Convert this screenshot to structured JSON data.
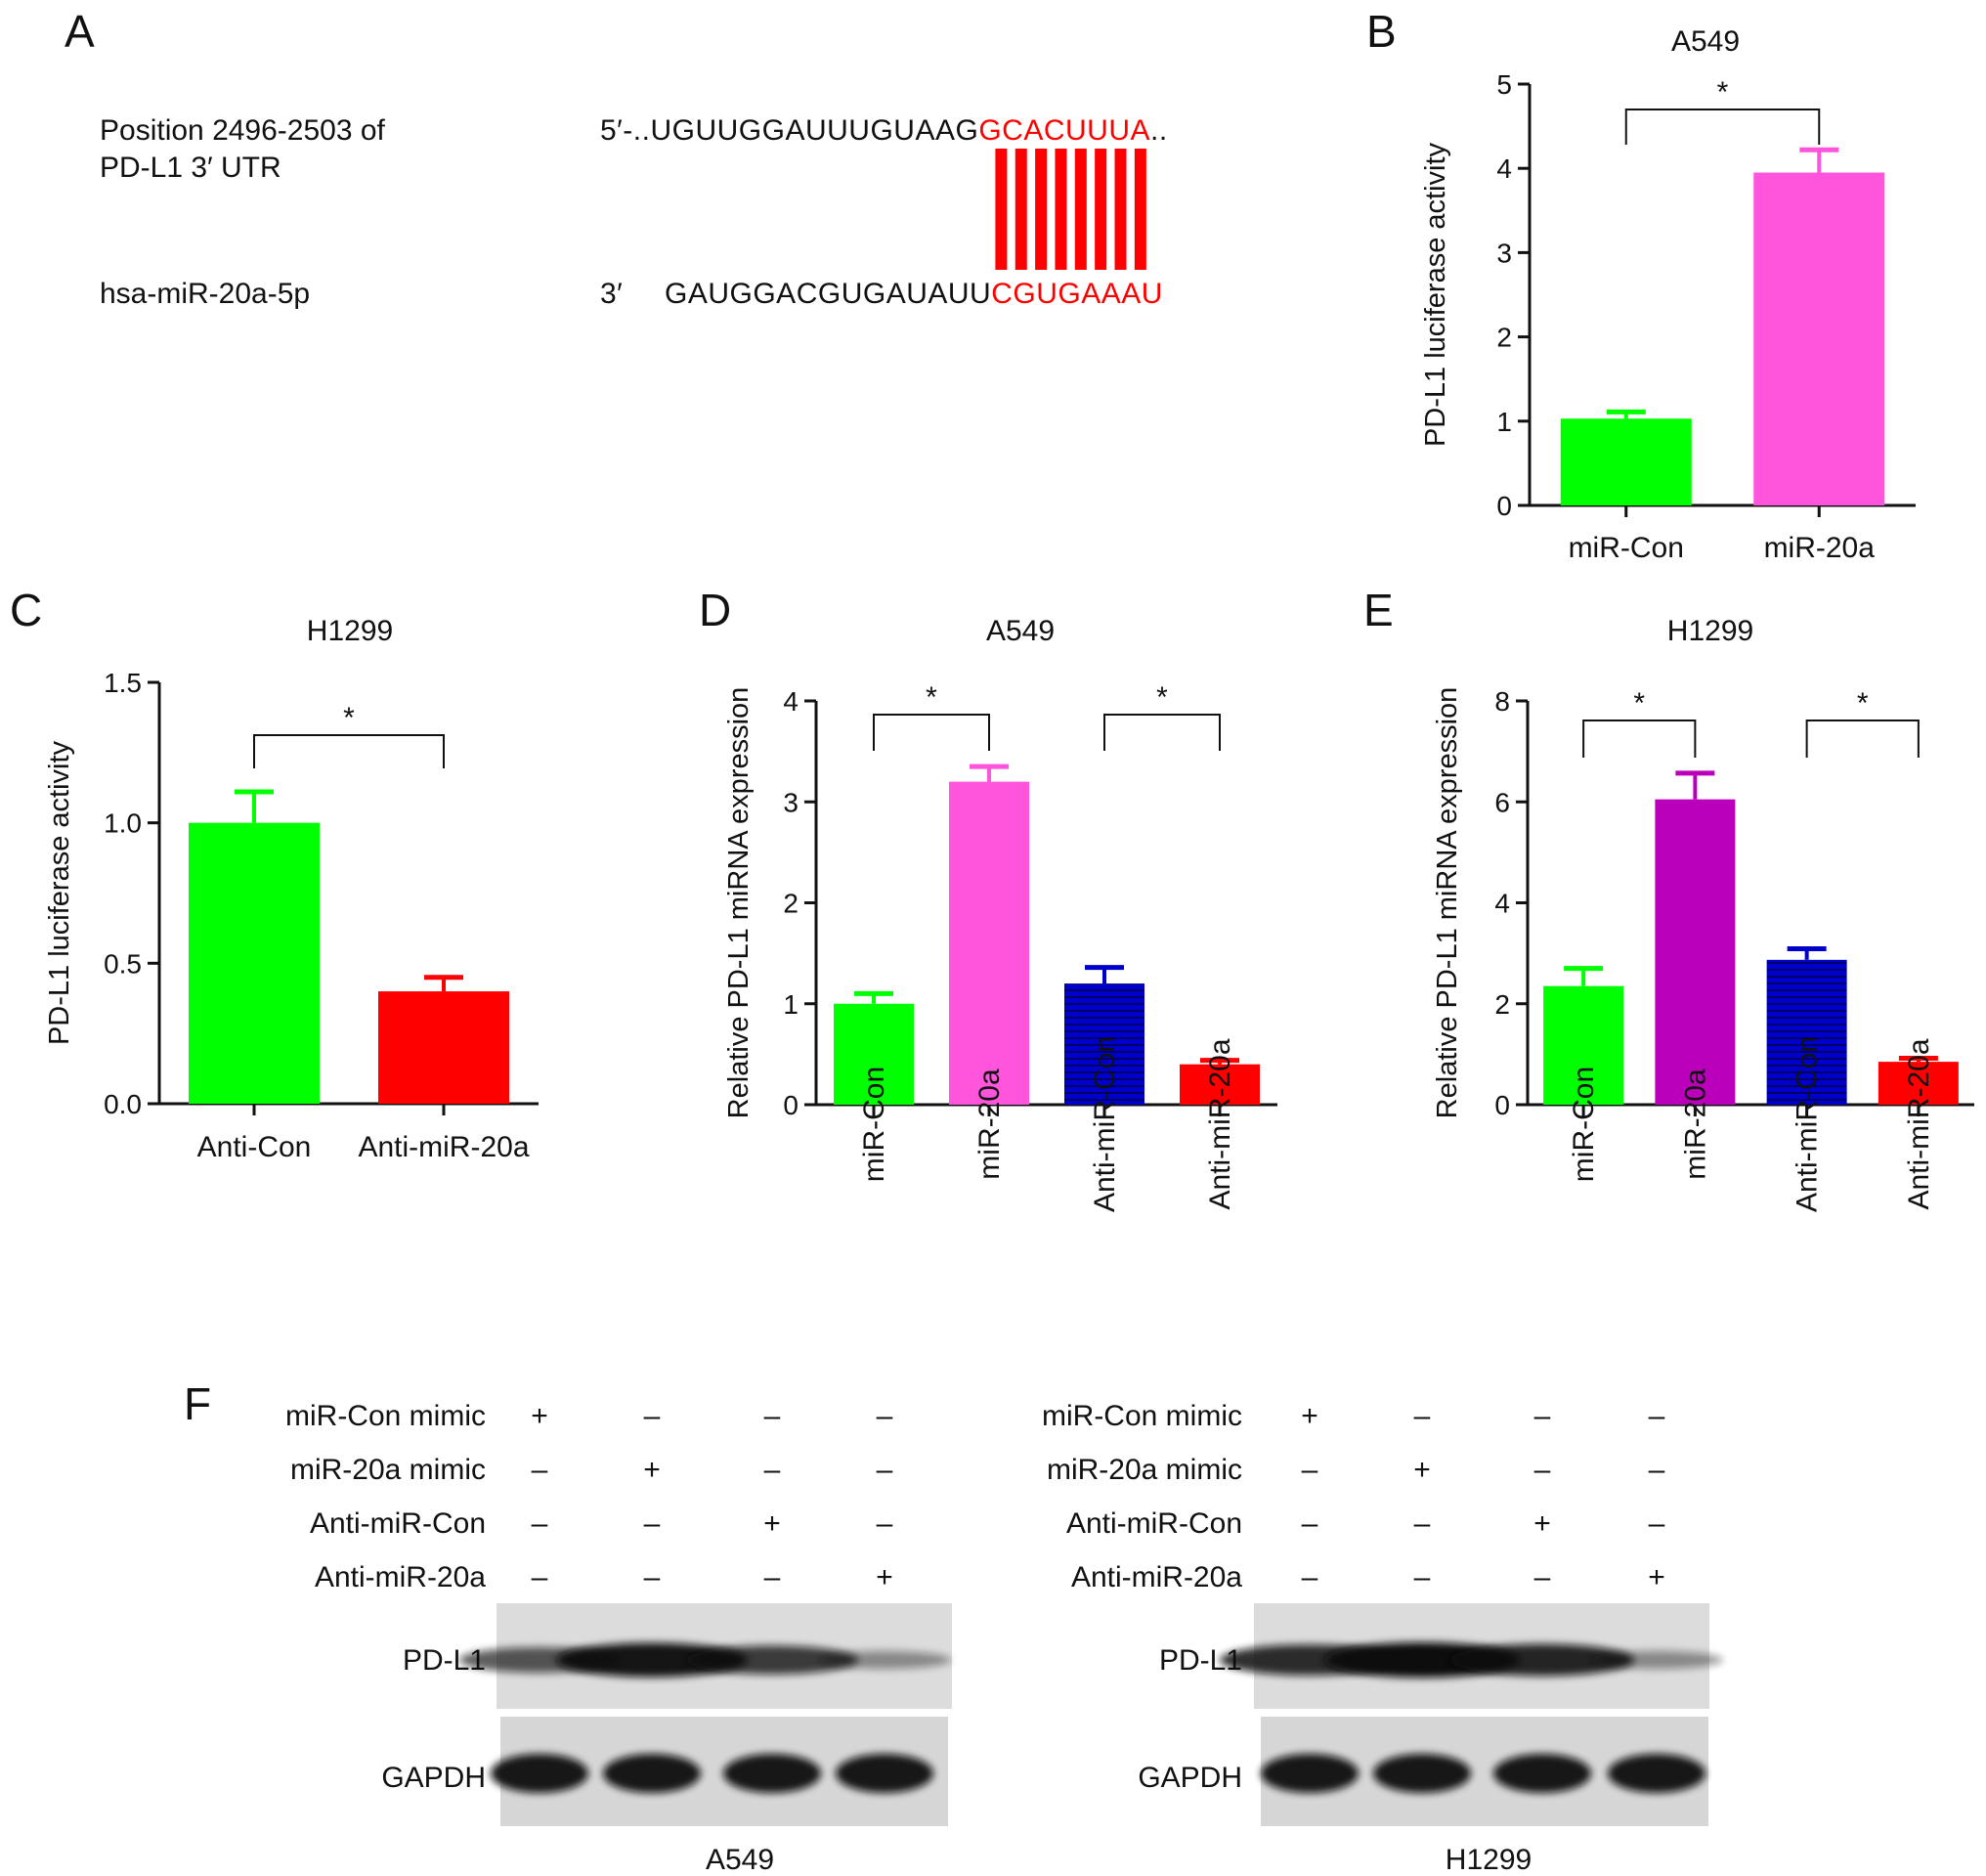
{
  "panels": {
    "A": "A",
    "B": "B",
    "C": "C",
    "D": "D",
    "E": "E",
    "F": "F"
  },
  "sequence": {
    "target_label_line1": "Position 2496-2503 of",
    "target_label_line2": "PD-L1 3′ UTR",
    "target_prefix": "5′-..UGUUGGAUUUGUAAG",
    "target_seed": "GCACUUUA",
    "target_suffix": "..",
    "mirna_label": "hsa-miR-20a-5p",
    "mirna_prefix": "3′",
    "mirna_body": "GAUGGACGUGAUAUU",
    "mirna_seed": "CGUGAAAU",
    "pair_count": 8,
    "pair_color": "#ff0000"
  },
  "chart_data": [
    {
      "id": "B",
      "type": "bar",
      "title": "A549",
      "ylabel": "PD-L1 luciferase activity",
      "ylim": [
        0,
        5
      ],
      "yticks": [
        "0",
        "1",
        "2",
        "3",
        "4",
        "5"
      ],
      "categories": [
        "miR-Con",
        "miR-20a"
      ],
      "values": [
        1.03,
        3.95
      ],
      "errors": [
        0.08,
        0.27
      ],
      "colors": [
        "#00ff00",
        "#ff55dd"
      ],
      "significance": [
        {
          "from": 0,
          "to": 1,
          "label": "*"
        }
      ]
    },
    {
      "id": "C",
      "type": "bar",
      "title": "H1299",
      "ylabel": "PD-L1 luciferase activity",
      "ylim": [
        0,
        1.5
      ],
      "yticks": [
        "0.0",
        "0.5",
        "1.0",
        "1.5"
      ],
      "categories": [
        "Anti-Con",
        "Anti-miR-20a"
      ],
      "values": [
        1.0,
        0.4
      ],
      "errors": [
        0.11,
        0.05
      ],
      "colors": [
        "#00ff00",
        "#ff0000"
      ],
      "significance": [
        {
          "from": 0,
          "to": 1,
          "label": "*"
        }
      ]
    },
    {
      "id": "D",
      "type": "bar",
      "title": "A549",
      "ylabel": "Relative PD-L1 miRNA expression",
      "ylim": [
        0,
        4
      ],
      "yticks": [
        "0",
        "1",
        "2",
        "3",
        "4"
      ],
      "categories": [
        "miR-Con",
        "miR-20a",
        "Anti-miR-Con",
        "Anti-miR-20a"
      ],
      "values": [
        1.0,
        3.2,
        1.2,
        0.4
      ],
      "errors": [
        0.1,
        0.15,
        0.16,
        0.04
      ],
      "colors": [
        "#00ff00",
        "#ff55dd",
        "#0000cc",
        "#ff0000"
      ],
      "significance": [
        {
          "from": 0,
          "to": 1,
          "label": "*"
        },
        {
          "from": 2,
          "to": 3,
          "label": "*"
        }
      ]
    },
    {
      "id": "E",
      "type": "bar",
      "title": "H1299",
      "ylabel": "Relative PD-L1 miRNA expression",
      "ylim": [
        0,
        8
      ],
      "yticks": [
        "0",
        "2",
        "4",
        "6",
        "8"
      ],
      "categories": [
        "miR-Con",
        "miR-20a",
        "Anti-miR-Con",
        "Anti-miR-20a"
      ],
      "values": [
        2.35,
        6.05,
        2.87,
        0.85
      ],
      "errors": [
        0.35,
        0.52,
        0.22,
        0.07
      ],
      "colors": [
        "#00ff00",
        "#bb00bb",
        "#0000cc",
        "#ff0000"
      ],
      "significance": [
        {
          "from": 0,
          "to": 1,
          "label": "*"
        },
        {
          "from": 2,
          "to": 3,
          "label": "*"
        }
      ]
    }
  ],
  "western": {
    "row_labels": [
      "miR-Con mimic",
      "miR-20a mimic",
      "Anti-miR-Con",
      "Anti-miR-20a"
    ],
    "signs": [
      [
        "+",
        "–",
        "–",
        "–"
      ],
      [
        "–",
        "+",
        "–",
        "–"
      ],
      [
        "–",
        "–",
        "+",
        "–"
      ],
      [
        "–",
        "–",
        "–",
        "+"
      ]
    ],
    "blot_labels": [
      "PD-L1",
      "GAPDH"
    ],
    "cell_lines": [
      "A549",
      "H1299"
    ],
    "pdl1_intensity": {
      "A549": [
        0.55,
        0.95,
        0.7,
        0.2
      ],
      "H1299": [
        0.8,
        1.0,
        0.85,
        0.2
      ]
    }
  }
}
